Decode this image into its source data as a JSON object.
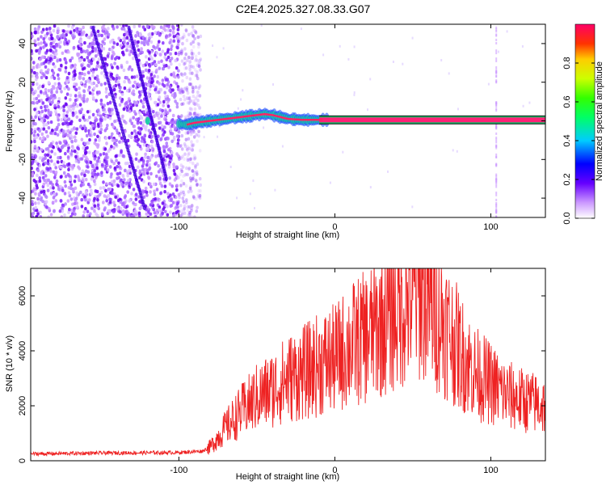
{
  "title": "C2E4.2025.327.08.33.G07",
  "colors": {
    "snr_line": "#ee2222",
    "carrier": "#ff2277",
    "noise": "#8833ff",
    "axis": "#000000"
  },
  "chart_data": [
    {
      "type": "heatmap",
      "name": "spectrogram",
      "xlabel": "Height of straight line (km)",
      "ylabel": "Frequency (Hz)",
      "xlim": [
        -195,
        135
      ],
      "ylim": [
        -50,
        50
      ],
      "xticks": [
        -100,
        0,
        100
      ],
      "yticks": [
        -40,
        -20,
        0,
        20,
        40
      ],
      "tick_labels_x": [
        "-100",
        "0",
        "100"
      ],
      "tick_labels_y": [
        "-40",
        "-20",
        "0",
        "20",
        "40"
      ],
      "noise_region_x": [
        -195,
        -90
      ],
      "carrier_track": {
        "x": [
          -120,
          -95,
          -90,
          -80,
          -70,
          -60,
          -50,
          -45,
          -40,
          -35,
          -30,
          -20,
          -10,
          0,
          20,
          40,
          60,
          80,
          100,
          120,
          135
        ],
        "freq": [
          0,
          -2,
          -1,
          0,
          1,
          2,
          3,
          3.5,
          3,
          2,
          1,
          0.5,
          0.5,
          0.5,
          0.5,
          0.5,
          0.5,
          0.5,
          0.5,
          0.5,
          0.5
        ]
      },
      "colorbar": {
        "label": "Normalized spectral amplitude",
        "range": [
          0,
          1
        ],
        "ticks": [
          0.0,
          0.2,
          0.4,
          0.6,
          0.8
        ],
        "tick_labels": [
          "0.0",
          "0.2",
          "0.4",
          "0.6",
          "0.8"
        ]
      }
    },
    {
      "type": "line",
      "name": "snr",
      "xlabel": "Height of straight line (km)",
      "ylabel": "SNR (10 * v/v)",
      "xlim": [
        -195,
        135
      ],
      "ylim": [
        0,
        7000
      ],
      "xticks": [
        -100,
        0,
        100
      ],
      "yticks": [
        0,
        2000,
        4000,
        6000
      ],
      "tick_labels_x": [
        "-100",
        "0",
        "100"
      ],
      "tick_labels_y": [
        "0",
        "2000",
        "4000",
        "6000"
      ],
      "envelope": {
        "x": [
          -195,
          -150,
          -100,
          -85,
          -80,
          -70,
          -60,
          -50,
          -40,
          -30,
          -20,
          -10,
          0,
          10,
          20,
          30,
          40,
          50,
          55,
          60,
          70,
          80,
          90,
          100,
          110,
          120,
          135
        ],
        "y": [
          250,
          280,
          300,
          350,
          500,
          1200,
          1800,
          2300,
          2600,
          3000,
          3200,
          3500,
          3700,
          4200,
          4500,
          5000,
          5500,
          6000,
          6300,
          5800,
          5000,
          4000,
          3200,
          2800,
          2400,
          2200,
          2000
        ]
      }
    }
  ]
}
